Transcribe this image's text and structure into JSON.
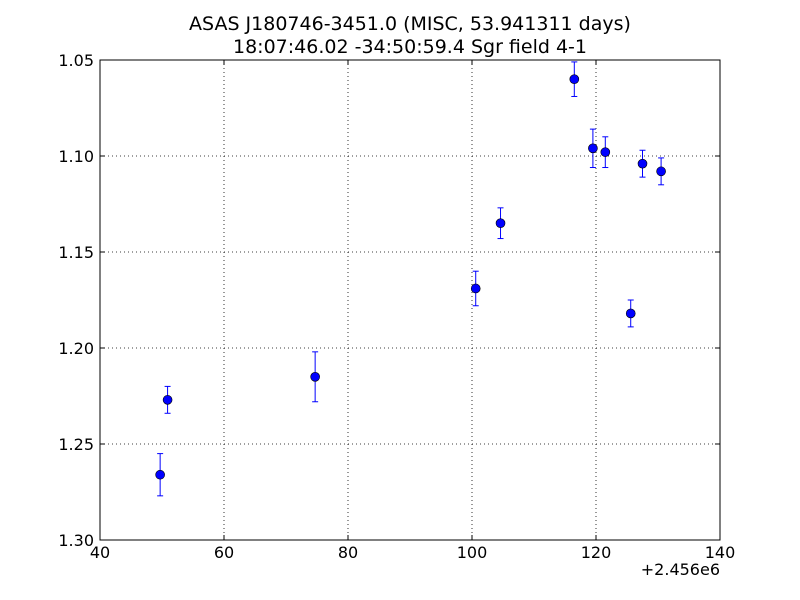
{
  "chart_data": {
    "type": "scatter",
    "title_line1": "ASAS J180746-3451.0 (MISC, 53.941311 days)",
    "title_line2": "18:07:46.02 -34:50:59.4 Sgr field 4-1",
    "xlabel": "",
    "ylabel": "",
    "x_offset_label": "+2.456e6",
    "xlim": [
      40,
      140
    ],
    "ylim": [
      1.05,
      1.3
    ],
    "y_inverted": true,
    "grid": true,
    "x_ticks": [
      40,
      60,
      80,
      100,
      120,
      140
    ],
    "y_ticks": [
      1.05,
      1.1,
      1.15,
      1.2,
      1.25,
      1.3
    ],
    "x_tick_labels": [
      "40",
      "60",
      "80",
      "100",
      "120",
      "140"
    ],
    "y_tick_labels": [
      "1.05",
      "1.10",
      "1.15",
      "1.20",
      "1.25",
      "1.30"
    ],
    "marker_color": "#0000ff",
    "errorbar_color": "#0000ff",
    "points": [
      {
        "x": 49.7,
        "y": 1.266,
        "err": 0.011
      },
      {
        "x": 50.9,
        "y": 1.227,
        "err": 0.007
      },
      {
        "x": 74.7,
        "y": 1.215,
        "err": 0.013
      },
      {
        "x": 100.6,
        "y": 1.169,
        "err": 0.009
      },
      {
        "x": 104.6,
        "y": 1.135,
        "err": 0.008
      },
      {
        "x": 116.5,
        "y": 1.06,
        "err": 0.009
      },
      {
        "x": 119.5,
        "y": 1.096,
        "err": 0.01
      },
      {
        "x": 121.5,
        "y": 1.098,
        "err": 0.008
      },
      {
        "x": 125.6,
        "y": 1.182,
        "err": 0.007
      },
      {
        "x": 127.5,
        "y": 1.104,
        "err": 0.007
      },
      {
        "x": 130.5,
        "y": 1.108,
        "err": 0.007
      }
    ]
  }
}
